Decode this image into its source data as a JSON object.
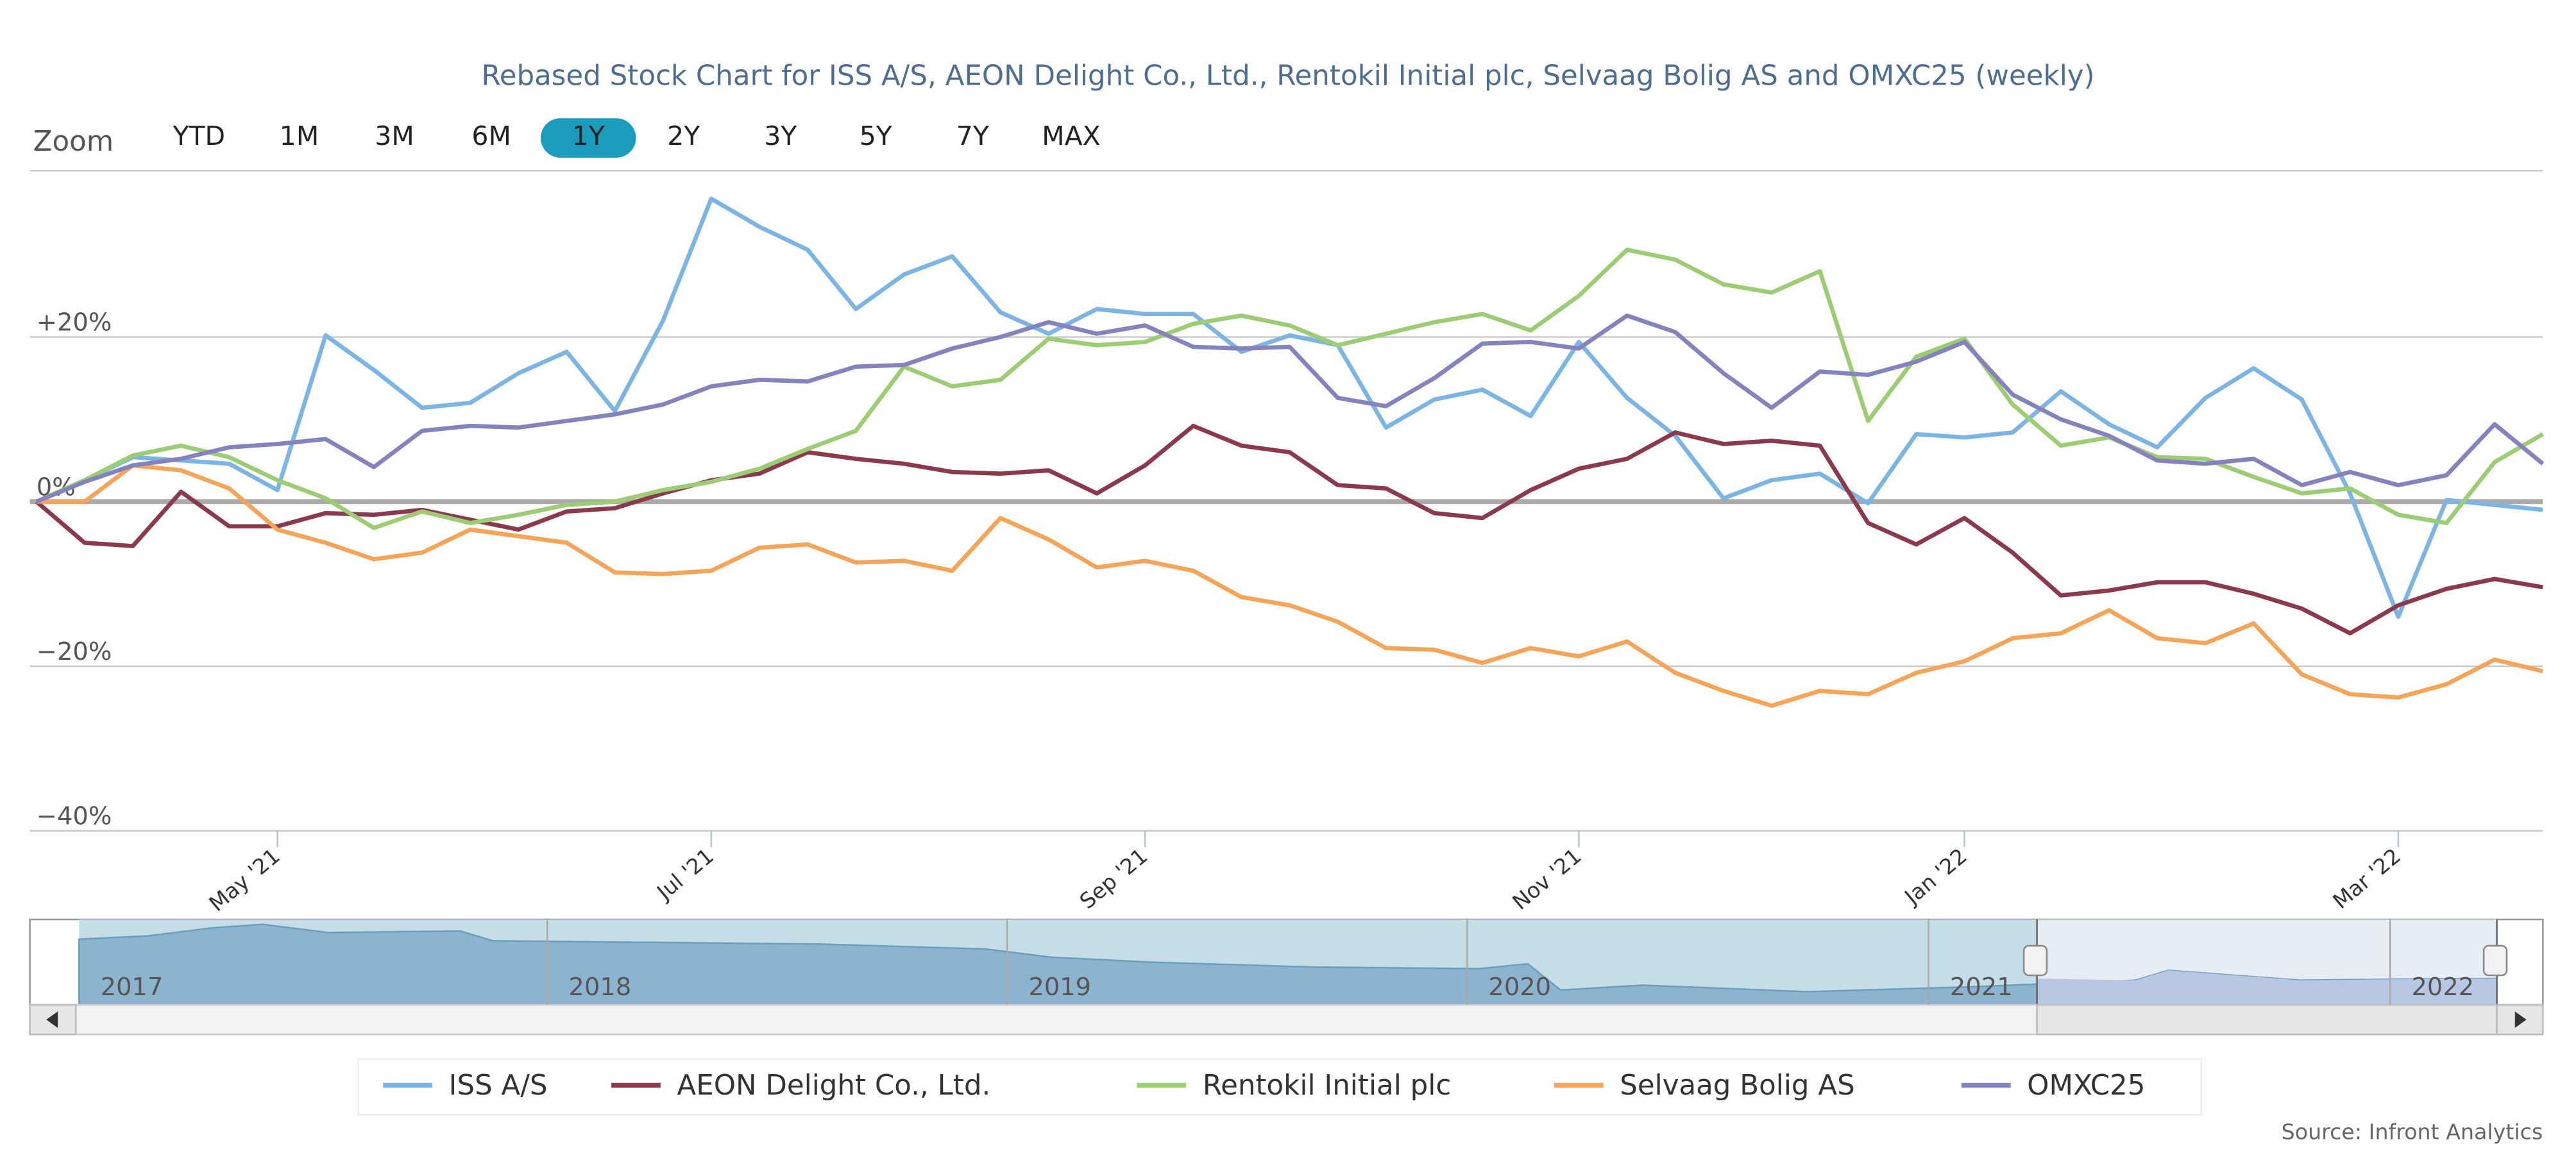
{
  "chart_data": {
    "type": "line",
    "title": "Rebased Stock Chart for ISS A/S, AEON Delight Co., Ltd., Rentokil Initial plc, Selvaag Bolig AS and OMXC25 (weekly)",
    "zoom_label": "Zoom",
    "zoom_buttons": [
      "YTD",
      "1M",
      "3M",
      "6M",
      "1Y",
      "2Y",
      "3Y",
      "5Y",
      "7Y",
      "MAX"
    ],
    "zoom_active": 4,
    "categories": [
      null,
      null,
      null,
      null,
      null,
      "May '21",
      null,
      null,
      null,
      null,
      null,
      null,
      null,
      null,
      "Jul '21",
      null,
      null,
      null,
      null,
      null,
      null,
      null,
      null,
      "Sep '21",
      null,
      null,
      null,
      null,
      null,
      null,
      null,
      null,
      "Nov '21",
      null,
      null,
      null,
      null,
      null,
      null,
      null,
      "Jan '22",
      null,
      null,
      null,
      null,
      null,
      null,
      null,
      null,
      "Mar '22",
      null,
      null,
      null
    ],
    "ylim": [
      -40,
      40
    ],
    "yticks": [
      {
        "value": -40,
        "label": "−40%"
      },
      {
        "value": -20,
        "label": "−20%"
      },
      {
        "value": 0,
        "label": "0%"
      },
      {
        "value": 20,
        "label": "+20%"
      }
    ],
    "grid": true,
    "series": [
      {
        "name": "ISS A/S",
        "color": "#7cb5e4",
        "values": [
          0,
          2.6,
          5.4,
          5,
          4.6,
          1.4,
          20.2,
          16,
          11.4,
          12,
          15.6,
          18.2,
          11,
          22,
          36.8,
          33.4,
          30.6,
          23.4,
          27.6,
          29.8,
          23,
          20.4,
          23.4,
          22.8,
          22.8,
          18.2,
          20.2,
          19,
          9,
          12.4,
          13.6,
          10.4,
          19.4,
          12.6,
          8,
          0.4,
          2.6,
          3.4,
          -0.2,
          8.2,
          7.8,
          8.4,
          13.4,
          9.4,
          6.6,
          12.6,
          16.2,
          12.4,
          1,
          -14,
          0.2,
          -0.4,
          -1
        ]
      },
      {
        "name": "AEON Delight Co., Ltd.",
        "color": "#8b3a4e",
        "values": [
          0,
          -5,
          -5.4,
          1.2,
          -3,
          -3,
          -1.4,
          -1.6,
          -1,
          -2.2,
          -3.4,
          -1.2,
          -0.8,
          1,
          2.6,
          3.4,
          6,
          5.2,
          4.6,
          3.6,
          3.4,
          3.8,
          1,
          4.4,
          9.2,
          6.8,
          6,
          2,
          1.6,
          -1.4,
          -2,
          1.4,
          4,
          5.2,
          8.4,
          7,
          7.4,
          6.8,
          -2.6,
          -5.2,
          -2,
          -6.2,
          -11.4,
          -10.8,
          -9.8,
          -9.8,
          -11.2,
          -13,
          -16,
          -12.6,
          -10.6,
          -9.4,
          -10.4
        ]
      },
      {
        "name": "Rentokil Initial plc",
        "color": "#9ccc73",
        "values": [
          0,
          2.6,
          5.6,
          6.8,
          5.4,
          2.6,
          0.4,
          -3.2,
          -1.2,
          -2.6,
          -1.6,
          -0.4,
          0,
          1.4,
          2.4,
          4,
          6.4,
          8.6,
          16.4,
          14,
          14.8,
          19.8,
          19,
          19.4,
          21.6,
          22.6,
          21.4,
          19,
          20.4,
          21.8,
          22.8,
          20.8,
          25,
          30.6,
          29.4,
          26.4,
          25.4,
          28,
          9.8,
          17.6,
          19.8,
          11.8,
          6.8,
          7.8,
          5.4,
          5.2,
          3,
          1,
          1.6,
          -1.6,
          -2.6,
          4.8,
          8.2
        ]
      },
      {
        "name": "Selvaag Bolig AS",
        "color": "#f5a55a",
        "values": [
          0,
          0,
          4.4,
          3.8,
          1.6,
          -3.4,
          -5,
          -7,
          -6.2,
          -3.4,
          -4.2,
          -5,
          -8.6,
          -8.8,
          -8.4,
          -5.6,
          -5.2,
          -7.4,
          -7.2,
          -8.4,
          -2,
          -4.6,
          -8,
          -7.2,
          -8.4,
          -11.6,
          -12.6,
          -14.6,
          -17.8,
          -18,
          -19.6,
          -17.8,
          -18.8,
          -17,
          -20.8,
          -23,
          -24.8,
          -23,
          -23.4,
          -20.8,
          -19.4,
          -16.6,
          -16,
          -13.2,
          -16.6,
          -17.2,
          -14.8,
          -21,
          -23.4,
          -23.8,
          -22.2,
          -19.2,
          -20.6
        ]
      },
      {
        "name": "OMXC25",
        "color": "#8583be",
        "values": [
          0,
          2.4,
          4.4,
          5.2,
          6.6,
          7,
          7.6,
          4.2,
          8.6,
          9.2,
          9,
          9.8,
          10.6,
          11.8,
          14,
          14.8,
          14.6,
          16.4,
          16.6,
          18.6,
          20,
          21.8,
          20.4,
          21.4,
          18.8,
          18.6,
          18.8,
          12.6,
          11.6,
          15,
          19.2,
          19.4,
          18.6,
          22.6,
          20.6,
          15.6,
          11.4,
          15.8,
          15.4,
          17,
          19.4,
          13,
          10,
          8,
          5,
          4.6,
          5.2,
          2,
          3.6,
          2,
          3.2,
          9.4,
          4.6
        ]
      }
    ],
    "navigator_labels": [
      "2017",
      "2018",
      "2019",
      "2020",
      "2021",
      "2022"
    ],
    "source": "Source: Infront Analytics"
  }
}
